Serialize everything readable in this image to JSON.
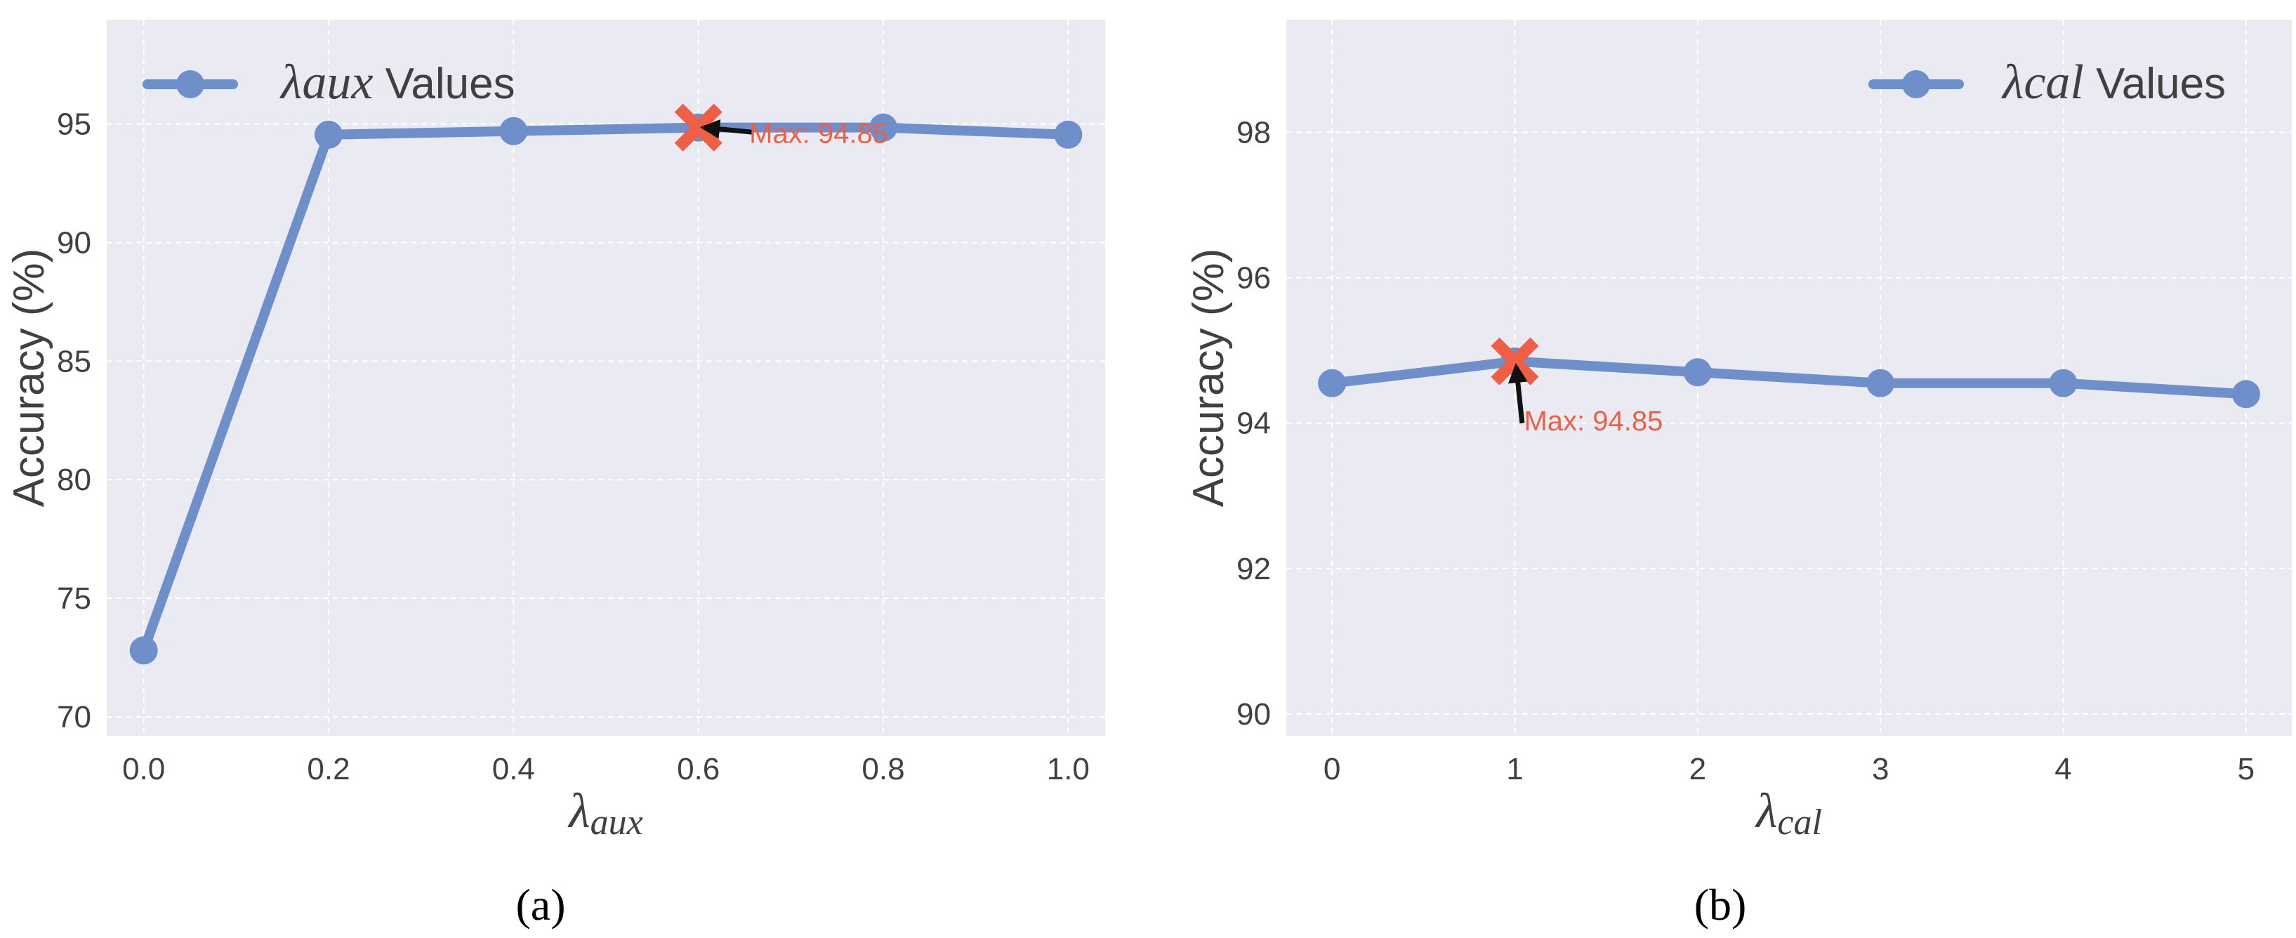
{
  "colors": {
    "panel_bg": "#eaeaf2",
    "grid": "#ffffff",
    "line": "#6f8fcb",
    "marker": "#6f8fcb",
    "max_marker": "#ee5f46",
    "annotation": "#ee5f46",
    "arrow": "#111111",
    "text": "#404040"
  },
  "chart_data": [
    {
      "type": "line",
      "caption": "(a)",
      "x": [
        0.0,
        0.2,
        0.4,
        0.6,
        0.8,
        1.0
      ],
      "xticks": [
        "0.0",
        "0.2",
        "0.4",
        "0.6",
        "0.8",
        "1.0"
      ],
      "series": [
        {
          "name_symbol": "λ",
          "name_sub": "aux",
          "name_suffix": " Values",
          "values": [
            72.8,
            94.55,
            94.7,
            94.85,
            94.85,
            94.55
          ]
        }
      ],
      "xlabel_symbol": "λ",
      "xlabel_sub": "aux",
      "ylabel": "Accuracy (%)",
      "xlim": [
        -0.04,
        1.04
      ],
      "ylim": [
        69.2,
        99.4
      ],
      "yticks": [
        70,
        75,
        80,
        85,
        90,
        95
      ],
      "grid": true,
      "legend": "top-left",
      "max_point": {
        "x": 0.6,
        "y": 94.85,
        "label": "Max: 94.85",
        "arrow_tail": [
          0.66,
          94.65
        ],
        "text_pos": [
          0.655,
          94.2
        ]
      }
    },
    {
      "type": "line",
      "caption": "(b)",
      "x": [
        0,
        1,
        2,
        3,
        4,
        5
      ],
      "xticks": [
        "0",
        "1",
        "2",
        "3",
        "4",
        "5"
      ],
      "series": [
        {
          "name_symbol": "λ",
          "name_sub": "cal",
          "name_suffix": " Values",
          "values": [
            94.55,
            94.85,
            94.7,
            94.55,
            94.55,
            94.4
          ]
        }
      ],
      "xlabel_symbol": "λ",
      "xlabel_sub": "cal",
      "ylabel": "Accuracy (%)",
      "xlim": [
        -0.25,
        5.25
      ],
      "ylim": [
        89.7,
        99.55
      ],
      "yticks": [
        90,
        92,
        94,
        96,
        98
      ],
      "grid": true,
      "legend": "top-right",
      "max_point": {
        "x": 1,
        "y": 94.85,
        "label": "Max: 94.85",
        "arrow_tail": [
          1.04,
          94.0
        ],
        "text_pos": [
          1.05,
          93.9
        ]
      }
    }
  ]
}
